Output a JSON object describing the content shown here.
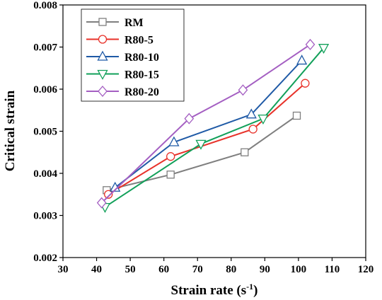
{
  "chart_data": {
    "type": "line",
    "title": "",
    "xlabel": "Strain rate (s",
    "xlabel_sup": "-1",
    "xlabel_close": ")",
    "ylabel": "Critical strain",
    "xlim": [
      30,
      120
    ],
    "ylim": [
      0.002,
      0.008
    ],
    "xticks": [
      "30",
      "40",
      "50",
      "60",
      "70",
      "80",
      "90",
      "100",
      "110",
      "120"
    ],
    "yticks": [
      "0.002",
      "0.003",
      "0.004",
      "0.005",
      "0.006",
      "0.007",
      "0.008"
    ],
    "legend_position": "top-left",
    "series": [
      {
        "name": "RM",
        "color": "#7f7f7f",
        "marker": "square",
        "x": [
          43,
          62,
          84,
          99.5
        ],
        "y": [
          0.0036,
          0.00397,
          0.0045,
          0.00537
        ]
      },
      {
        "name": "R80-5",
        "color": "#e8322a",
        "marker": "circle",
        "x": [
          43.5,
          62,
          86.5,
          102
        ],
        "y": [
          0.0035,
          0.0044,
          0.00505,
          0.00614
        ]
      },
      {
        "name": "R80-10",
        "color": "#1f5aa6",
        "marker": "triangle-up",
        "x": [
          45.5,
          63,
          86,
          101
        ],
        "y": [
          0.00366,
          0.00474,
          0.0054,
          0.00668
        ]
      },
      {
        "name": "R80-15",
        "color": "#12a05a",
        "marker": "triangle-down",
        "x": [
          42.5,
          71,
          89.5,
          107.5
        ],
        "y": [
          0.0032,
          0.0047,
          0.0053,
          0.00698
        ]
      },
      {
        "name": "R80-20",
        "color": "#a45fc2",
        "marker": "diamond",
        "x": [
          41.5,
          67.5,
          83.5,
          103.5
        ],
        "y": [
          0.0033,
          0.0053,
          0.00598,
          0.00706
        ]
      }
    ]
  }
}
